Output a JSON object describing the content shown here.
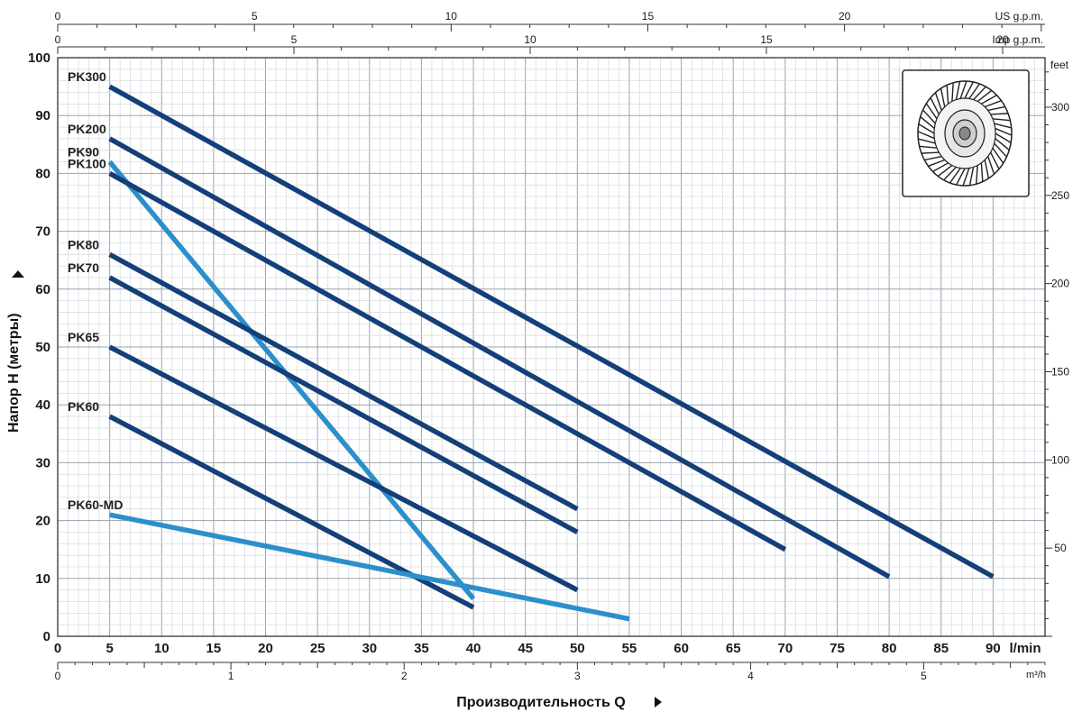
{
  "chart_data": {
    "type": "line",
    "xlabel": "Производительность Q",
    "ylabel": "Напор H (метры)",
    "x_unit": "l/min",
    "x_range": [
      0,
      95
    ],
    "y_range": [
      0,
      100
    ],
    "x_ticks": [
      0,
      5,
      10,
      15,
      20,
      25,
      30,
      35,
      40,
      45,
      50,
      55,
      60,
      65,
      70,
      75,
      80,
      85,
      90
    ],
    "y_ticks": [
      0,
      10,
      20,
      30,
      40,
      50,
      60,
      70,
      80,
      90,
      100
    ],
    "grid": true,
    "secondary_axes": {
      "us_gpm": {
        "label": "US g.p.m.",
        "ticks": [
          0,
          5,
          10,
          15,
          20
        ]
      },
      "imp_gpm": {
        "label": "Imp g.p.m.",
        "ticks": [
          0,
          5,
          10,
          15,
          20
        ]
      },
      "m3h": {
        "label": "m³/h",
        "ticks": [
          0,
          1,
          2,
          3,
          4,
          5
        ]
      },
      "feet": {
        "label": "feet",
        "ticks": [
          50,
          100,
          150,
          200,
          250,
          300
        ]
      }
    },
    "series": [
      {
        "name": "PK300",
        "color": "#143f78",
        "x": [
          5,
          90
        ],
        "y": [
          95,
          10.3
        ]
      },
      {
        "name": "PK200",
        "color": "#143f78",
        "x": [
          5,
          80
        ],
        "y": [
          86,
          10.3
        ]
      },
      {
        "name": "PK90",
        "color": "#2b8fcc",
        "x": [
          5,
          40
        ],
        "y": [
          82,
          6.5
        ]
      },
      {
        "name": "PK100",
        "color": "#143f78",
        "x": [
          5,
          70
        ],
        "y": [
          80,
          15
        ]
      },
      {
        "name": "PK80",
        "color": "#143f78",
        "x": [
          5,
          50
        ],
        "y": [
          66,
          22
        ]
      },
      {
        "name": "PK70",
        "color": "#143f78",
        "x": [
          5,
          50
        ],
        "y": [
          62,
          18
        ]
      },
      {
        "name": "PK65",
        "color": "#143f78",
        "x": [
          5,
          50
        ],
        "y": [
          50,
          8
        ]
      },
      {
        "name": "PK60",
        "color": "#143f78",
        "x": [
          5,
          40
        ],
        "y": [
          38,
          5
        ]
      },
      {
        "name": "PK60-MD",
        "color": "#2b8fcc",
        "x": [
          5,
          55
        ],
        "y": [
          21,
          3
        ]
      }
    ]
  },
  "icon": "pump-impeller-icon"
}
